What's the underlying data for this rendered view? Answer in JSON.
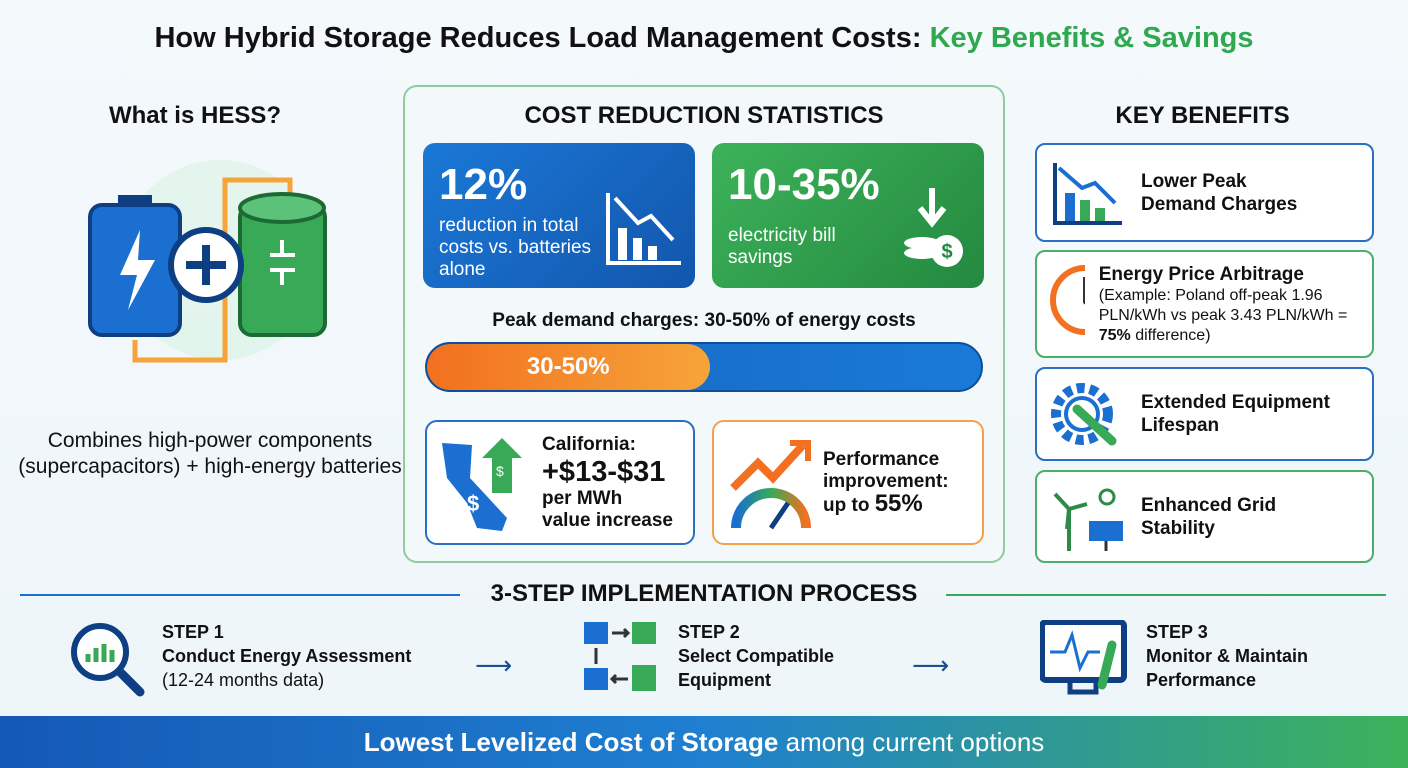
{
  "title": {
    "main": "How Hybrid Storage Reduces Load Management Costs: ",
    "highlight": "Key Benefits & Savings"
  },
  "hess": {
    "heading": "What is HESS?",
    "description": "Combines high-power components (supercapacitors) + high-energy batteries"
  },
  "stats": {
    "heading": "COST REDUCTION STATISTICS",
    "card1": {
      "value": "12%",
      "text": "reduction in total costs vs. batteries alone",
      "color": "#1565c0"
    },
    "card2": {
      "value": "10-35%",
      "text": "electricity bill savings",
      "color": "#2e9e4f"
    },
    "peak_caption": "Peak demand charges: 30-50% of energy costs",
    "peak_bar": {
      "label": "30-50%",
      "fill_percent": 51
    },
    "california": {
      "line1": "California:",
      "value": "+$13-$31",
      "line3": "per MWh",
      "line4": "value increase"
    },
    "performance": {
      "line1": "Performance",
      "line2": "improvement:",
      "prefix": "up to ",
      "value": "55%"
    }
  },
  "benefits": {
    "heading": "KEY BENEFITS",
    "items": [
      {
        "title": "Lower Peak Demand Charges"
      },
      {
        "title": "Energy Price Arbitrage",
        "detail_pre": "(Example: Poland off-peak 1.96 PLN/kWh vs peak 3.43 PLN/kWh = ",
        "detail_bold": "75%",
        "detail_post": " difference)"
      },
      {
        "title": "Extended Equipment Lifespan"
      },
      {
        "title": "Enhanced Grid Stability"
      }
    ]
  },
  "process": {
    "heading": "3-STEP IMPLEMENTATION PROCESS",
    "steps": [
      {
        "label": "STEP 1",
        "line1": "Conduct Energy Assessment",
        "line2": "(12-24 months data)"
      },
      {
        "label": "STEP 2",
        "line1": "Select Compatible",
        "line2": "Equipment"
      },
      {
        "label": "STEP 3",
        "line1": "Monitor & Maintain",
        "line2": "Performance"
      }
    ],
    "arrow": "⟶"
  },
  "footer": {
    "bold": "Lowest Levelized Cost of Storage",
    "rest": " among current options"
  }
}
